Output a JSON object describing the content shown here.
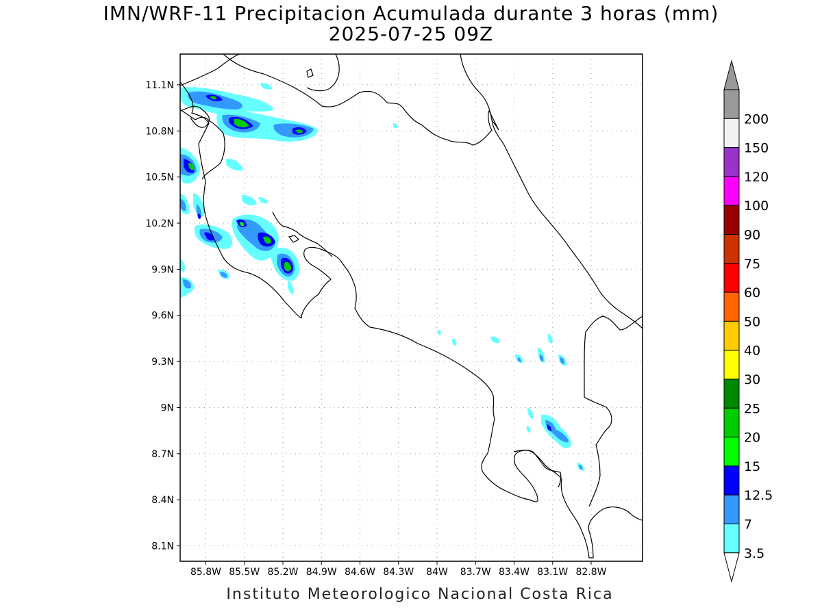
{
  "title_line1": "IMN/WRF-11 Precipitacion Acumulada durante 3 horas (mm)",
  "title_line2": "2025-07-25 09Z",
  "footer": "Instituto Meteorologico Nacional Costa Rica",
  "map": {
    "lat_labels": [
      "11.1N",
      "10.8N",
      "10.5N",
      "10.2N",
      "9.9N",
      "9.6N",
      "9.3N",
      "9N",
      "8.7N",
      "8.4N",
      "8.1N"
    ],
    "lon_labels": [
      "85.8W",
      "85.5W",
      "85.2W",
      "84.9W",
      "84.6W",
      "84.3W",
      "84W",
      "83.7W",
      "83.4W",
      "83.1W",
      "82.8W"
    ],
    "lat_values": [
      11.1,
      10.8,
      10.5,
      10.2,
      9.9,
      9.6,
      9.3,
      9.0,
      8.7,
      8.4,
      8.1
    ],
    "lon_values": [
      -85.8,
      -85.5,
      -85.2,
      -84.9,
      -84.6,
      -84.3,
      -84.0,
      -83.7,
      -83.4,
      -83.1,
      -82.8
    ],
    "extent": {
      "lon_min": -86.0,
      "lon_max": -82.4,
      "lat_min": 8.0,
      "lat_max": 11.3
    },
    "grid": true,
    "coastline_color": "#000000"
  },
  "colorbar": {
    "labels": [
      "3.5",
      "7",
      "12.5",
      "15",
      "20",
      "25",
      "30",
      "40",
      "50",
      "60",
      "75",
      "90",
      "100",
      "120",
      "150",
      "200"
    ],
    "colors": [
      "#66ffff",
      "#3399ff",
      "#0000ff",
      "#00ff00",
      "#00cc00",
      "#008800",
      "#ffff00",
      "#ffcc00",
      "#ff6600",
      "#ff0000",
      "#cc3300",
      "#990000",
      "#ff00ff",
      "#9933cc",
      "#f2f2f2",
      "#999999"
    ],
    "arrow_top_color": "#999999",
    "arrow_bottom_color": "#ffffff"
  }
}
